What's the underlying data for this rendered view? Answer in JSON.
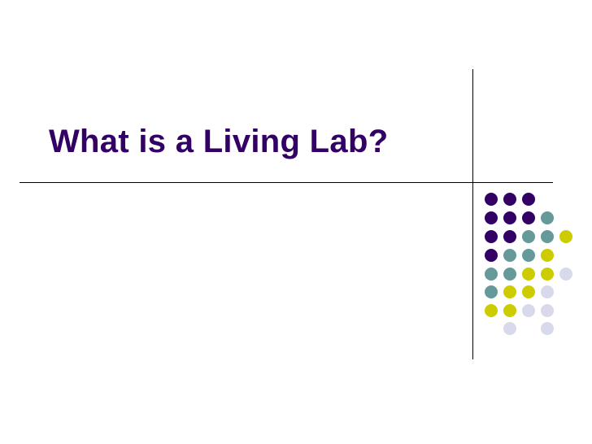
{
  "slide": {
    "title": "What is a Living Lab?"
  },
  "decoration": {
    "colors": {
      "P": "#330066",
      "T": "#669999",
      "Y": "#cccc00",
      "L": "#d9d9ec"
    },
    "dot_grid": [
      "PPP__",
      "PPPT_",
      "PPTTY",
      "PTTY_",
      "TTYYL",
      "TYYL_",
      "YYLL_",
      "_L_L_"
    ]
  }
}
